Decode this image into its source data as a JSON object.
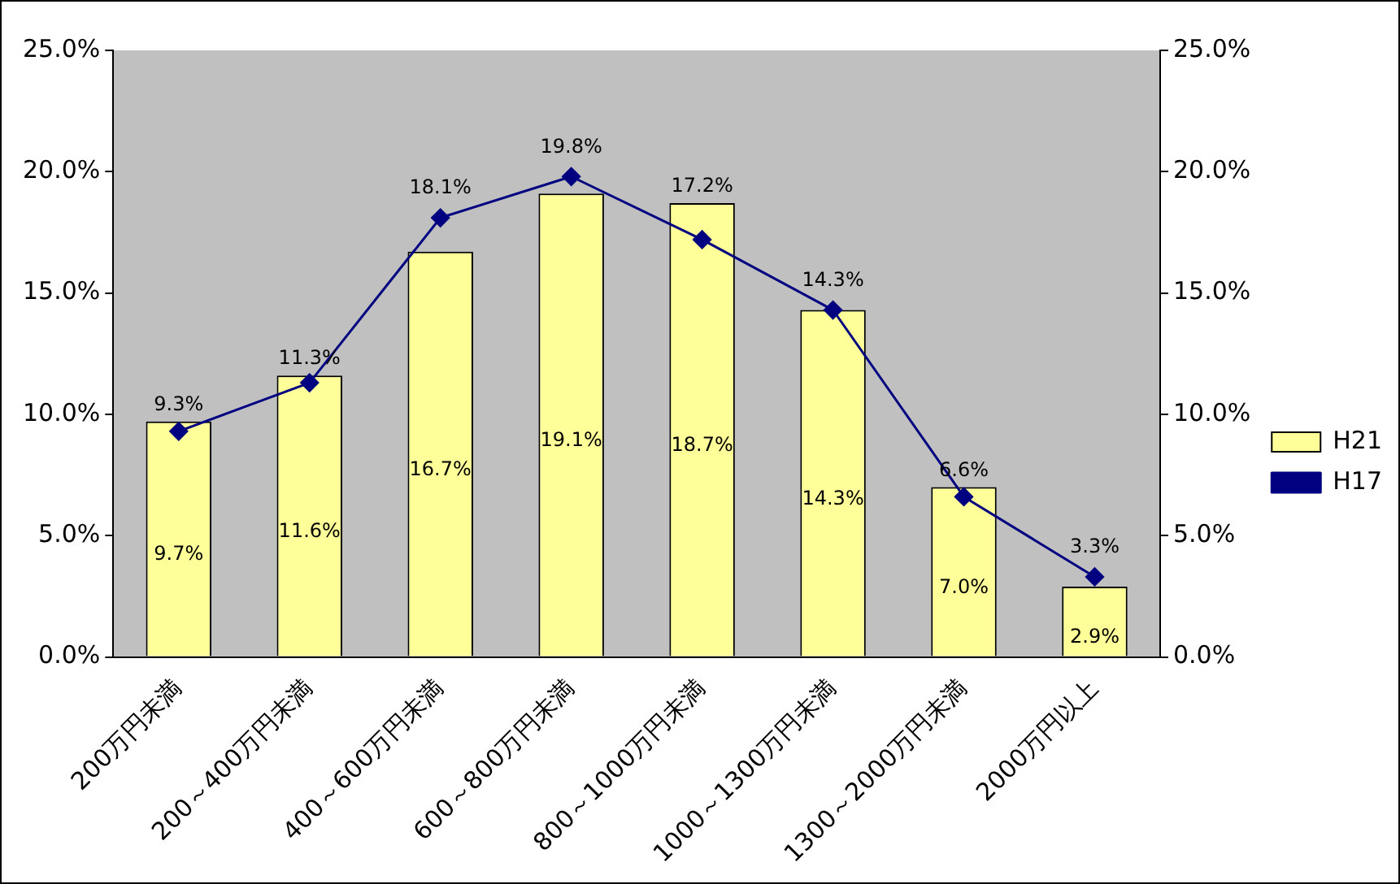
{
  "chart_data": {
    "type": "bar",
    "categories": [
      "200万円未満",
      "200～400万円未満",
      "400～600万円未満",
      "600～800万円未満",
      "800～1000万円未満",
      "1000～1300万円未満",
      "1300～2000万円未満",
      "2000万円以上"
    ],
    "series": [
      {
        "name": "H21",
        "color": "#ffff99",
        "values": [
          9.7,
          11.6,
          16.7,
          19.1,
          18.7,
          14.3,
          7.0,
          2.9
        ],
        "value_labels": [
          "9.7%",
          "11.6%",
          "16.7%",
          "19.1%",
          "18.7%",
          "14.3%",
          "7.0%",
          "2.9%"
        ]
      },
      {
        "name": "H17",
        "type": "line",
        "color": "#000080",
        "marker": "diamond",
        "values": [
          9.3,
          11.3,
          18.1,
          19.8,
          17.2,
          14.3,
          6.6,
          3.3
        ],
        "value_labels": [
          "9.3%",
          "11.3%",
          "18.1%",
          "19.8%",
          "17.2%",
          "14.3%",
          "6.6%",
          "3.3%"
        ]
      }
    ],
    "ylim": [
      0,
      25
    ],
    "yticks": [
      {
        "value": 0,
        "label": "0.0%"
      },
      {
        "value": 5,
        "label": "5.0%"
      },
      {
        "value": 10,
        "label": "10.0%"
      },
      {
        "value": 15,
        "label": "15.0%"
      },
      {
        "value": 20,
        "label": "20.0%"
      },
      {
        "value": 25,
        "label": "25.0%"
      }
    ],
    "y2lim": [
      0,
      25
    ],
    "y2ticks": [
      {
        "value": 0,
        "label": "0.0%"
      },
      {
        "value": 5,
        "label": "5.0%"
      },
      {
        "value": 10,
        "label": "10.0%"
      },
      {
        "value": 15,
        "label": "15.0%"
      },
      {
        "value": 20,
        "label": "20.0%"
      },
      {
        "value": 25,
        "label": "25.0%"
      }
    ],
    "grid": false,
    "legend": "right"
  }
}
